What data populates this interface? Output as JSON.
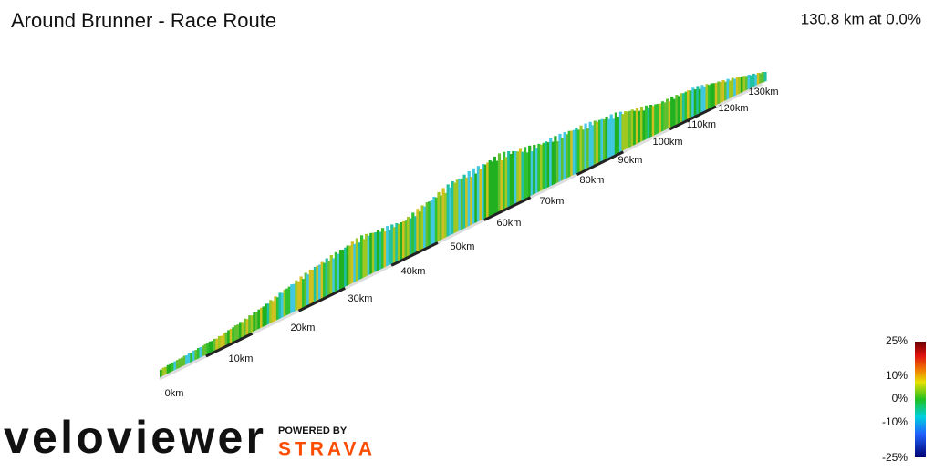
{
  "header": {
    "title": "Around Brunner - Race Route",
    "summary": "130.8 km at 0.0%"
  },
  "distance_markers": [
    "0km",
    "10km",
    "20km",
    "30km",
    "40km",
    "50km",
    "60km",
    "70km",
    "80km",
    "90km",
    "100km",
    "110km",
    "120km",
    "130km"
  ],
  "gradient_legend": [
    "25%",
    "10%",
    "0%",
    "-10%",
    "-25%"
  ],
  "branding": {
    "logo": "veloviewer",
    "powered_by": "POWERED BY",
    "partner": "STRAVA"
  }
}
